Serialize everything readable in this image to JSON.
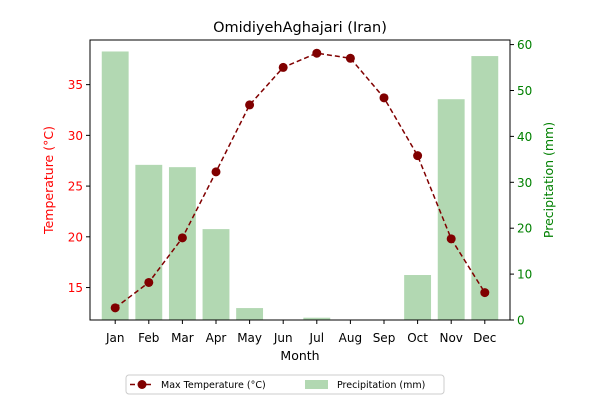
{
  "chart_data": {
    "type": "bar+line",
    "title": "OmidiyehAghajari (Iran)",
    "xlabel": "Month",
    "ylabel_left": "Temperature (°C)",
    "ylabel_right": "Precipitation (mm)",
    "categories": [
      "Jan",
      "Feb",
      "Mar",
      "Apr",
      "May",
      "Jun",
      "Jul",
      "Aug",
      "Sep",
      "Oct",
      "Nov",
      "Dec"
    ],
    "ylim_left": [
      11.8,
      39.4
    ],
    "ylim_right": [
      0,
      61
    ],
    "yticks_left": [
      15,
      20,
      25,
      30,
      35
    ],
    "yticks_right": [
      0,
      10,
      20,
      30,
      40,
      50,
      60
    ],
    "series": [
      {
        "name": "Max Temperature (°C)",
        "type": "line",
        "axis": "left",
        "color": "#800000",
        "linestyle": "dashed",
        "marker": "circle",
        "values": [
          13.0,
          15.5,
          19.9,
          26.4,
          33.0,
          36.7,
          38.1,
          37.6,
          33.7,
          28.0,
          19.8,
          14.5
        ]
      },
      {
        "name": "Precipitation (mm)",
        "type": "bar",
        "axis": "right",
        "color": "#b2d8b2",
        "values": [
          58.5,
          33.8,
          33.3,
          19.8,
          2.6,
          0,
          0.5,
          0,
          0,
          9.8,
          48.1,
          57.5
        ]
      }
    ],
    "colors": {
      "left_axis": "#ff0000",
      "right_axis": "#008000"
    },
    "legend_position": "bottom-center"
  }
}
